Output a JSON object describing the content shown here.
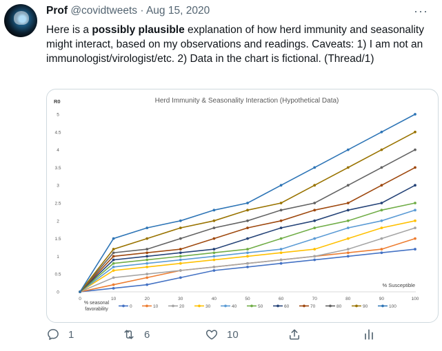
{
  "tweet": {
    "name": "Prof",
    "handle": "@covidtweets",
    "separator": "·",
    "date": "Aug 15, 2020",
    "more_label": "···",
    "text_pre": "Here is a ",
    "text_bold": "possibly plausible",
    "text_post": " explanation of how herd immunity and seasonality might interact, based on my observations and readings. Caveats: 1) I am not an immunologist/virologist/etc. 2) Data in the chart is fictional. (Thread/1)"
  },
  "actions": {
    "reply_count": "1",
    "retweet_count": "6",
    "like_count": "10",
    "icons": [
      "reply-icon",
      "retweet-icon",
      "like-icon",
      "share-icon",
      "analytics-icon"
    ]
  },
  "chart_data": {
    "type": "line",
    "title": "Herd Immunity & Seasonality Interaction (Hypothetical Data)",
    "ylabel": "R0",
    "xlabel": "% Susceptible",
    "legend_title": "% seasonal favorability",
    "legend_position": "bottom",
    "grid": false,
    "x": [
      0,
      10,
      20,
      30,
      40,
      50,
      60,
      70,
      80,
      90,
      100
    ],
    "ylim": [
      0,
      5
    ],
    "yticks": [
      "0",
      "0.5",
      "1",
      "1.5",
      "2",
      "2.5",
      "3",
      "3.5",
      "4",
      "4.5",
      "5"
    ],
    "series": [
      {
        "name": "0",
        "color": "#4472c4",
        "values": [
          0,
          0.1,
          0.2,
          0.4,
          0.6,
          0.7,
          0.8,
          0.9,
          1.0,
          1.1,
          1.2
        ]
      },
      {
        "name": "10",
        "color": "#ed7d31",
        "values": [
          0,
          0.2,
          0.4,
          0.6,
          0.7,
          0.8,
          0.9,
          1.0,
          1.1,
          1.2,
          1.5
        ]
      },
      {
        "name": "20",
        "color": "#a5a5a5",
        "values": [
          0,
          0.4,
          0.5,
          0.6,
          0.7,
          0.8,
          0.9,
          1.0,
          1.2,
          1.5,
          1.8
        ]
      },
      {
        "name": "30",
        "color": "#ffc000",
        "values": [
          0,
          0.6,
          0.7,
          0.8,
          0.9,
          1.0,
          1.1,
          1.2,
          1.5,
          1.8,
          2.0
        ]
      },
      {
        "name": "40",
        "color": "#5b9bd5",
        "values": [
          0,
          0.7,
          0.8,
          0.9,
          1.0,
          1.1,
          1.2,
          1.5,
          1.8,
          2.0,
          2.3
        ]
      },
      {
        "name": "50",
        "color": "#70ad47",
        "values": [
          0,
          0.8,
          0.9,
          1.0,
          1.1,
          1.2,
          1.5,
          1.8,
          2.0,
          2.3,
          2.5
        ]
      },
      {
        "name": "60",
        "color": "#264478",
        "values": [
          0,
          0.9,
          1.0,
          1.1,
          1.2,
          1.5,
          1.8,
          2.0,
          2.3,
          2.5,
          3.0
        ]
      },
      {
        "name": "70",
        "color": "#9e480e",
        "values": [
          0,
          1.0,
          1.1,
          1.2,
          1.5,
          1.8,
          2.0,
          2.3,
          2.5,
          3.0,
          3.5
        ]
      },
      {
        "name": "80",
        "color": "#636363",
        "values": [
          0,
          1.1,
          1.2,
          1.5,
          1.8,
          2.0,
          2.3,
          2.5,
          3.0,
          3.5,
          4.0
        ]
      },
      {
        "name": "90",
        "color": "#997300",
        "values": [
          0,
          1.2,
          1.5,
          1.8,
          2.0,
          2.3,
          2.5,
          3.0,
          3.5,
          4.0,
          4.5
        ]
      },
      {
        "name": "100",
        "color": "#2e75b6",
        "values": [
          0,
          1.5,
          1.8,
          2.0,
          2.3,
          2.5,
          3.0,
          3.5,
          4.0,
          4.5,
          5.0
        ]
      }
    ]
  }
}
